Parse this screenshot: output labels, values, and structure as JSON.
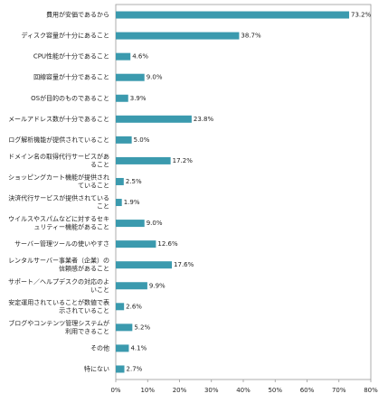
{
  "chart_data": {
    "type": "barh",
    "categories": [
      "費用が安価であるから",
      "ディスク容量が十分にあること",
      "CPU性能が十分であること",
      "回線容量が十分であること",
      "OSが目的のものであること",
      "メールアドレス数が十分であること",
      "ログ解析機能が提供されていること",
      "ドメイン名の取得代行サービスがあること",
      "ショッピングカート機能が提供されていること",
      "決済代行サービスが提供されていること",
      "ウイルスやスパムなどに対するセキュリティー機能があること",
      "サーバー管理ツールの使いやすさ",
      "レンタルサーバー事業者（企業）の信頼感があること",
      "サポート／ヘルプデスクの対応のよいこと",
      "安定運用されていることが数値で表示されていること",
      "ブログやコンテンツ管理システムが利用できること",
      "その他",
      "特にない"
    ],
    "values": [
      73.2,
      38.7,
      4.6,
      9.0,
      3.9,
      23.8,
      5.0,
      17.2,
      2.5,
      1.9,
      9.0,
      12.6,
      17.6,
      9.9,
      2.6,
      5.2,
      4.1,
      2.7
    ],
    "value_labels": [
      "73.2%",
      "38.7%",
      "4.6%",
      "9.0%",
      "3.9%",
      "23.8%",
      "5.0%",
      "17.2%",
      "2.5%",
      "1.9%",
      "9.0%",
      "12.6%",
      "17.6%",
      "9.9%",
      "2.6%",
      "5.2%",
      "4.1%",
      "2.7%"
    ],
    "color": "#3b9aae",
    "xlim": [
      0,
      80
    ],
    "xticks": [
      {
        "value": 0,
        "label": "0%"
      },
      {
        "value": 10,
        "label": "10%"
      },
      {
        "value": 20,
        "label": "20%"
      },
      {
        "value": 30,
        "label": "30%"
      },
      {
        "value": 40,
        "label": "40%"
      },
      {
        "value": 50,
        "label": "50%"
      },
      {
        "value": 60,
        "label": "60%"
      },
      {
        "value": 70,
        "label": "70%"
      },
      {
        "value": 80,
        "label": "80%"
      }
    ]
  }
}
